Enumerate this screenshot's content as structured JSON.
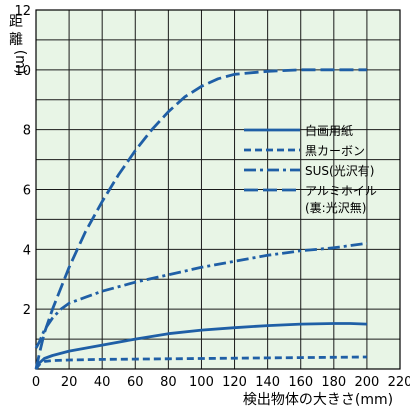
{
  "chart_data": {
    "type": "line",
    "ylabel": "距離(m)",
    "xlabel": "検出物体の大きさ(mm)",
    "xlim": [
      0,
      220
    ],
    "ylim": [
      0,
      12
    ],
    "x_ticks": [
      0,
      20,
      40,
      60,
      80,
      100,
      120,
      140,
      160,
      180,
      200,
      220
    ],
    "y_ticks": [
      2,
      4,
      6,
      8,
      10,
      12
    ],
    "grid": true,
    "legend_position": "right-middle",
    "colors": {
      "line": "#1f5fa6",
      "plot_bg": "#e8f5e6",
      "grid": "#1a1a1a"
    },
    "series": [
      {
        "name": "白画用紙",
        "style": "solid",
        "x": [
          0,
          2,
          5,
          10,
          20,
          40,
          60,
          80,
          100,
          120,
          140,
          160,
          180,
          190,
          200
        ],
        "y": [
          0,
          0.2,
          0.35,
          0.45,
          0.6,
          0.8,
          1.0,
          1.18,
          1.3,
          1.38,
          1.45,
          1.5,
          1.52,
          1.52,
          1.5
        ]
      },
      {
        "name": "黒カーボン",
        "style": "dash",
        "x": [
          0,
          2,
          5,
          10,
          20,
          40,
          60,
          80,
          100,
          120,
          140,
          160,
          180,
          200
        ],
        "y": [
          0,
          0.15,
          0.25,
          0.28,
          0.3,
          0.32,
          0.33,
          0.34,
          0.35,
          0.36,
          0.37,
          0.38,
          0.39,
          0.4
        ]
      },
      {
        "name": "SUS(光沢有)",
        "style": "dashdot",
        "x": [
          0,
          2,
          5,
          10,
          15,
          20,
          30,
          40,
          60,
          80,
          100,
          120,
          140,
          160,
          180,
          200
        ],
        "y": [
          0.7,
          0.9,
          1.3,
          1.7,
          2.0,
          2.2,
          2.4,
          2.6,
          2.9,
          3.15,
          3.4,
          3.6,
          3.8,
          3.95,
          4.05,
          4.2
        ]
      },
      {
        "name": "アルミホイル(裏:光沢無)",
        "style": "longdash",
        "x": [
          0,
          2,
          5,
          10,
          20,
          30,
          40,
          50,
          60,
          70,
          80,
          90,
          100,
          110,
          120,
          140,
          160,
          180,
          200
        ],
        "y": [
          0,
          0.5,
          1.2,
          2.0,
          3.4,
          4.6,
          5.6,
          6.5,
          7.3,
          8.0,
          8.6,
          9.1,
          9.45,
          9.7,
          9.85,
          9.95,
          10.0,
          10.0,
          10.0
        ]
      }
    ],
    "legend": {
      "entries": [
        {
          "label": "白画用紙",
          "style": "solid"
        },
        {
          "label": "黒カーボン",
          "style": "dash"
        },
        {
          "label": "SUS(光沢有)",
          "style": "dashdot"
        },
        {
          "label": "アルミホイル",
          "label2": "(裏:光沢無)",
          "style": "longdash"
        }
      ]
    }
  }
}
